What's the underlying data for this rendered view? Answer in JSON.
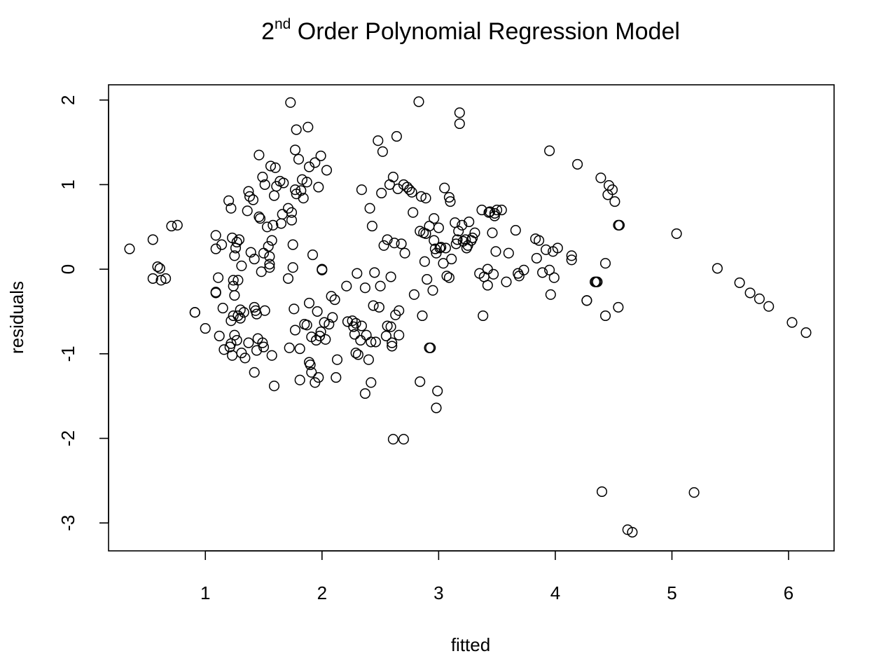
{
  "chart_data": {
    "type": "scatter",
    "title": "2nd Order Polynomial Regression Model",
    "title_main": "2",
    "title_sup": "nd",
    "title_rest": " Order Polynomial Regression Model",
    "xlabel": "fitted",
    "ylabel": "residuals",
    "xlim": [
      0.17,
      6.39
    ],
    "ylim": [
      -3.33,
      2.18
    ],
    "x_ticks": [
      1,
      2,
      3,
      4,
      5,
      6
    ],
    "y_ticks": [
      -3,
      -2,
      -1,
      0,
      1,
      2
    ],
    "grid": false,
    "legend": "none",
    "marker": "open-circle",
    "color": "#000000",
    "points": [
      [
        0.35,
        0.24
      ],
      [
        0.55,
        0.35
      ],
      [
        0.55,
        -0.11
      ],
      [
        0.59,
        0.03
      ],
      [
        0.61,
        0.01
      ],
      [
        0.62,
        -0.13
      ],
      [
        0.66,
        -0.11
      ],
      [
        0.71,
        0.51
      ],
      [
        0.76,
        0.52
      ],
      [
        0.91,
        -0.51
      ],
      [
        0.91,
        -0.51
      ],
      [
        1.0,
        -0.7
      ],
      [
        1.09,
        0.4
      ],
      [
        1.09,
        0.24
      ],
      [
        1.09,
        -0.28
      ],
      [
        1.09,
        -0.27
      ],
      [
        1.11,
        -0.1
      ],
      [
        1.12,
        -0.79
      ],
      [
        1.14,
        0.29
      ],
      [
        1.15,
        -0.46
      ],
      [
        1.16,
        -0.95
      ],
      [
        1.2,
        0.81
      ],
      [
        1.21,
        -0.92
      ],
      [
        1.22,
        -0.61
      ],
      [
        1.22,
        -0.88
      ],
      [
        1.22,
        0.72
      ],
      [
        1.23,
        -1.02
      ],
      [
        1.23,
        0.37
      ],
      [
        1.24,
        -0.2
      ],
      [
        1.24,
        -0.13
      ],
      [
        1.24,
        -0.55
      ],
      [
        1.25,
        -0.78
      ],
      [
        1.25,
        0.16
      ],
      [
        1.25,
        -0.31
      ],
      [
        1.26,
        0.25
      ],
      [
        1.27,
        -0.84
      ],
      [
        1.27,
        0.32
      ],
      [
        1.28,
        -0.55
      ],
      [
        1.28,
        -0.13
      ],
      [
        1.29,
        0.35
      ],
      [
        1.3,
        -0.58
      ],
      [
        1.3,
        -0.48
      ],
      [
        1.31,
        0.04
      ],
      [
        1.31,
        -0.99
      ],
      [
        1.33,
        -0.51
      ],
      [
        1.34,
        -1.05
      ],
      [
        1.36,
        0.69
      ],
      [
        1.37,
        0.92
      ],
      [
        1.37,
        -0.87
      ],
      [
        1.38,
        0.86
      ],
      [
        1.39,
        0.2
      ],
      [
        1.41,
        0.82
      ],
      [
        1.42,
        -1.22
      ],
      [
        1.42,
        0.12
      ],
      [
        1.42,
        -0.45
      ],
      [
        1.43,
        -0.49
      ],
      [
        1.44,
        -0.53
      ],
      [
        1.44,
        -0.96
      ],
      [
        1.45,
        -0.82
      ],
      [
        1.46,
        1.35
      ],
      [
        1.46,
        0.62
      ],
      [
        1.47,
        0.6
      ],
      [
        1.48,
        -0.03
      ],
      [
        1.49,
        1.09
      ],
      [
        1.49,
        -0.87
      ],
      [
        1.5,
        -0.92
      ],
      [
        1.5,
        0.19
      ],
      [
        1.51,
        1.0
      ],
      [
        1.51,
        -0.49
      ],
      [
        1.53,
        0.5
      ],
      [
        1.54,
        0.27
      ],
      [
        1.55,
        0.06
      ],
      [
        1.55,
        0.15
      ],
      [
        1.55,
        0.02
      ],
      [
        1.56,
        1.22
      ],
      [
        1.57,
        -1.02
      ],
      [
        1.57,
        0.34
      ],
      [
        1.58,
        0.52
      ],
      [
        1.59,
        0.87
      ],
      [
        1.59,
        -1.38
      ],
      [
        1.6,
        1.2
      ],
      [
        1.61,
        0.98
      ],
      [
        1.64,
        1.04
      ],
      [
        1.65,
        0.54
      ],
      [
        1.66,
        0.65
      ],
      [
        1.67,
        1.02
      ],
      [
        1.71,
        -0.11
      ],
      [
        1.71,
        0.72
      ],
      [
        1.72,
        -0.93
      ],
      [
        1.73,
        1.97
      ],
      [
        1.74,
        0.58
      ],
      [
        1.74,
        0.67
      ],
      [
        1.75,
        0.29
      ],
      [
        1.75,
        0.02
      ],
      [
        1.76,
        -0.47
      ],
      [
        1.77,
        -0.72
      ],
      [
        1.77,
        0.94
      ],
      [
        1.77,
        1.41
      ],
      [
        1.78,
        0.89
      ],
      [
        1.78,
        1.65
      ],
      [
        1.8,
        1.3
      ],
      [
        1.81,
        -0.94
      ],
      [
        1.81,
        -1.31
      ],
      [
        1.82,
        0.93
      ],
      [
        1.83,
        1.06
      ],
      [
        1.84,
        0.84
      ],
      [
        1.85,
        -0.65
      ],
      [
        1.87,
        -0.66
      ],
      [
        1.87,
        1.03
      ],
      [
        1.88,
        1.68
      ],
      [
        1.89,
        -0.4
      ],
      [
        1.89,
        1.21
      ],
      [
        1.89,
        -1.1
      ],
      [
        1.9,
        -1.13
      ],
      [
        1.91,
        -1.22
      ],
      [
        1.91,
        -0.8
      ],
      [
        1.92,
        0.17
      ],
      [
        1.94,
        1.26
      ],
      [
        1.94,
        -1.34
      ],
      [
        1.95,
        -0.84
      ],
      [
        1.96,
        -0.5
      ],
      [
        1.97,
        0.97
      ],
      [
        1.97,
        -1.28
      ],
      [
        1.98,
        -0.79
      ],
      [
        1.99,
        1.34
      ],
      [
        1.99,
        -0.74
      ],
      [
        2.0,
        -0.01
      ],
      [
        2.0,
        0.0
      ],
      [
        2.02,
        -0.63
      ],
      [
        2.03,
        -0.83
      ],
      [
        2.04,
        1.17
      ],
      [
        2.06,
        -0.65
      ],
      [
        2.08,
        -0.32
      ],
      [
        2.09,
        -0.57
      ],
      [
        2.11,
        -0.36
      ],
      [
        2.12,
        -1.28
      ],
      [
        2.13,
        -1.07
      ],
      [
        2.21,
        -0.2
      ],
      [
        2.22,
        -0.62
      ],
      [
        2.26,
        -0.61
      ],
      [
        2.27,
        -0.68
      ],
      [
        2.28,
        -0.77
      ],
      [
        2.29,
        -0.64
      ],
      [
        2.29,
        -0.99
      ],
      [
        2.3,
        -0.05
      ],
      [
        2.31,
        -1.01
      ],
      [
        2.33,
        -0.84
      ],
      [
        2.34,
        0.94
      ],
      [
        2.34,
        -0.67
      ],
      [
        2.37,
        -0.22
      ],
      [
        2.37,
        -1.47
      ],
      [
        2.38,
        -0.78
      ],
      [
        2.4,
        -1.07
      ],
      [
        2.41,
        0.72
      ],
      [
        2.42,
        -0.86
      ],
      [
        2.42,
        -1.34
      ],
      [
        2.43,
        0.51
      ],
      [
        2.44,
        -0.43
      ],
      [
        2.45,
        -0.04
      ],
      [
        2.46,
        -0.86
      ],
      [
        2.48,
        1.52
      ],
      [
        2.49,
        -0.45
      ],
      [
        2.5,
        -0.2
      ],
      [
        2.51,
        0.9
      ],
      [
        2.52,
        1.39
      ],
      [
        2.53,
        0.28
      ],
      [
        2.55,
        -0.79
      ],
      [
        2.56,
        0.35
      ],
      [
        2.56,
        -0.67
      ],
      [
        2.58,
        1.0
      ],
      [
        2.59,
        -0.68
      ],
      [
        2.59,
        -0.09
      ],
      [
        2.6,
        -0.91
      ],
      [
        2.6,
        -0.87
      ],
      [
        2.61,
        -2.01
      ],
      [
        2.61,
        1.09
      ],
      [
        2.62,
        0.31
      ],
      [
        2.63,
        -0.54
      ],
      [
        2.64,
        1.57
      ],
      [
        2.65,
        0.95
      ],
      [
        2.66,
        -0.49
      ],
      [
        2.66,
        -0.78
      ],
      [
        2.68,
        0.3
      ],
      [
        2.7,
        -2.01
      ],
      [
        2.7,
        1.0
      ],
      [
        2.71,
        0.19
      ],
      [
        2.73,
        0.97
      ],
      [
        2.75,
        0.94
      ],
      [
        2.77,
        0.91
      ],
      [
        2.78,
        0.67
      ],
      [
        2.79,
        -0.3
      ],
      [
        2.83,
        1.98
      ],
      [
        2.84,
        0.45
      ],
      [
        2.84,
        -1.33
      ],
      [
        2.85,
        0.86
      ],
      [
        2.86,
        -0.55
      ],
      [
        2.87,
        0.43
      ],
      [
        2.88,
        0.09
      ],
      [
        2.89,
        0.84
      ],
      [
        2.89,
        0.42
      ],
      [
        2.9,
        -0.12
      ],
      [
        2.92,
        -0.93
      ],
      [
        2.92,
        0.51
      ],
      [
        2.93,
        -0.93
      ],
      [
        2.95,
        -0.25
      ],
      [
        2.96,
        0.6
      ],
      [
        2.96,
        0.34
      ],
      [
        2.97,
        0.24
      ],
      [
        2.98,
        0.19
      ],
      [
        2.98,
        -1.64
      ],
      [
        2.99,
        -1.44
      ],
      [
        3.0,
        0.49
      ],
      [
        3.01,
        0.25
      ],
      [
        3.02,
        0.26
      ],
      [
        3.04,
        0.07
      ],
      [
        3.05,
        0.96
      ],
      [
        3.06,
        0.25
      ],
      [
        3.07,
        -0.08
      ],
      [
        3.09,
        0.85
      ],
      [
        3.09,
        -0.1
      ],
      [
        3.1,
        0.8
      ],
      [
        3.11,
        0.12
      ],
      [
        3.14,
        0.55
      ],
      [
        3.15,
        0.3
      ],
      [
        3.16,
        0.35
      ],
      [
        3.17,
        0.45
      ],
      [
        3.18,
        1.85
      ],
      [
        3.18,
        1.72
      ],
      [
        3.2,
        0.52
      ],
      [
        3.21,
        0.33
      ],
      [
        3.23,
        0.35
      ],
      [
        3.24,
        0.25
      ],
      [
        3.25,
        0.28
      ],
      [
        3.26,
        0.56
      ],
      [
        3.28,
        0.34
      ],
      [
        3.29,
        0.37
      ],
      [
        3.31,
        0.43
      ],
      [
        3.35,
        -0.05
      ],
      [
        3.37,
        0.7
      ],
      [
        3.38,
        -0.55
      ],
      [
        3.39,
        -0.09
      ],
      [
        3.42,
        0.0
      ],
      [
        3.42,
        -0.19
      ],
      [
        3.43,
        0.67
      ],
      [
        3.44,
        0.68
      ],
      [
        3.46,
        0.43
      ],
      [
        3.47,
        -0.06
      ],
      [
        3.48,
        0.63
      ],
      [
        3.48,
        0.66
      ],
      [
        3.49,
        0.21
      ],
      [
        3.5,
        0.7
      ],
      [
        3.54,
        0.7
      ],
      [
        3.58,
        -0.15
      ],
      [
        3.6,
        0.19
      ],
      [
        3.66,
        0.46
      ],
      [
        3.68,
        -0.05
      ],
      [
        3.69,
        -0.08
      ],
      [
        3.73,
        -0.01
      ],
      [
        3.83,
        0.36
      ],
      [
        3.84,
        0.13
      ],
      [
        3.86,
        0.34
      ],
      [
        3.89,
        -0.04
      ],
      [
        3.92,
        0.23
      ],
      [
        3.95,
        1.4
      ],
      [
        3.95,
        -0.01
      ],
      [
        3.96,
        -0.3
      ],
      [
        3.98,
        0.21
      ],
      [
        3.99,
        -0.1
      ],
      [
        4.02,
        0.25
      ],
      [
        4.14,
        0.16
      ],
      [
        4.14,
        0.11
      ],
      [
        4.19,
        1.24
      ],
      [
        4.27,
        -0.37
      ],
      [
        4.27,
        -0.37
      ],
      [
        4.34,
        -0.15
      ],
      [
        4.35,
        -0.15
      ],
      [
        4.36,
        -0.15
      ],
      [
        4.39,
        1.08
      ],
      [
        4.4,
        -2.63
      ],
      [
        4.43,
        -0.55
      ],
      [
        4.43,
        0.07
      ],
      [
        4.45,
        0.88
      ],
      [
        4.46,
        0.99
      ],
      [
        4.49,
        0.94
      ],
      [
        4.51,
        0.8
      ],
      [
        4.54,
        0.52
      ],
      [
        4.54,
        -0.45
      ],
      [
        4.55,
        0.52
      ],
      [
        4.62,
        -3.08
      ],
      [
        4.66,
        -3.11
      ],
      [
        5.04,
        0.42
      ],
      [
        5.19,
        -2.64
      ],
      [
        5.39,
        0.01
      ],
      [
        5.58,
        -0.16
      ],
      [
        5.67,
        -0.28
      ],
      [
        5.75,
        -0.35
      ],
      [
        5.83,
        -0.44
      ],
      [
        6.03,
        -0.63
      ],
      [
        6.15,
        -0.75
      ]
    ]
  }
}
